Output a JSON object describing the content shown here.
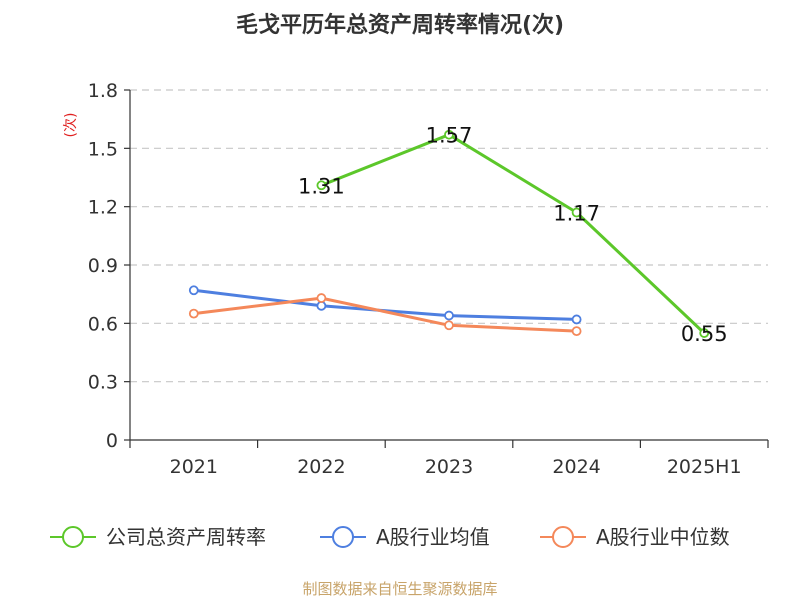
{
  "chart_data": {
    "type": "line",
    "title": "毛戈平历年总资产周转率情况(次)",
    "ylabel": "(次)",
    "xlabel": "",
    "categories": [
      "2021",
      "2022",
      "2023",
      "2024",
      "2025H1"
    ],
    "ylim": [
      0,
      1.8
    ],
    "yticks": [
      0,
      0.3,
      0.6,
      0.9,
      1.2,
      1.5,
      1.8
    ],
    "ytick_labels": [
      "0",
      "0.3",
      "0.6",
      "0.9",
      "1.2",
      "1.5",
      "1.8"
    ],
    "grid": true,
    "legend_position": "bottom",
    "series": [
      {
        "name": "公司总资产周转率",
        "color": "#5cc72a",
        "values": [
          null,
          1.31,
          1.57,
          1.17,
          0.55
        ],
        "data_labels": [
          null,
          "1.31",
          "1.57",
          "1.17",
          "0.55"
        ]
      },
      {
        "name": "A股行业均值",
        "color": "#4e7fe0",
        "values": [
          0.77,
          0.69,
          0.64,
          0.62,
          null
        ],
        "data_labels": [
          null,
          null,
          null,
          null,
          null
        ]
      },
      {
        "name": "A股行业中位数",
        "color": "#f4885a",
        "values": [
          0.65,
          0.73,
          0.59,
          0.56,
          null
        ],
        "data_labels": [
          null,
          null,
          null,
          null,
          null
        ]
      }
    ],
    "source": "制图数据来自恒生聚源数据库"
  }
}
